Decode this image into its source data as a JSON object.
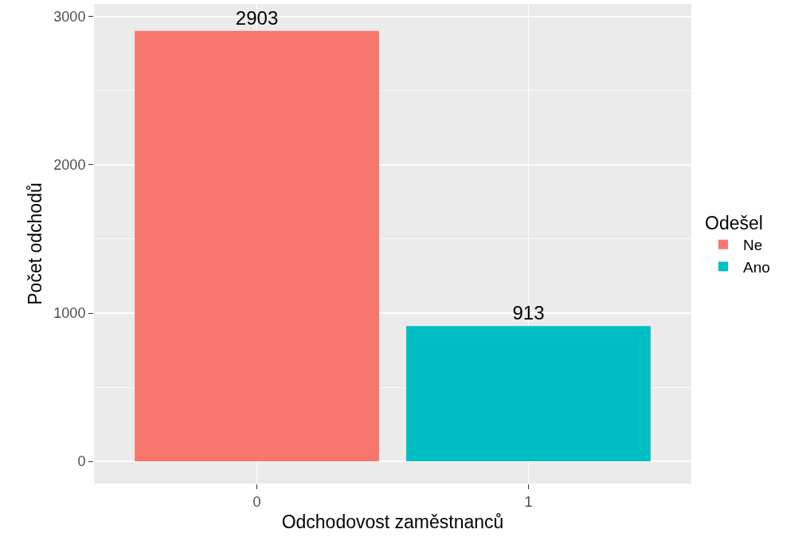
{
  "chart_data": {
    "type": "bar",
    "xlabel": "Odchodovost zaměstnanců",
    "ylabel": "Počet odchodů",
    "legend_title": "Odešel",
    "categories": [
      "0",
      "1"
    ],
    "series": [
      {
        "name": "Ne",
        "color": "#f8766d",
        "values": [
          2903,
          null
        ]
      },
      {
        "name": "Ano",
        "color": "#00bfc4",
        "values": [
          null,
          913
        ]
      }
    ],
    "ylim": [
      -150,
      3085
    ],
    "yticks": [
      0,
      {
        "value": 500,
        "label": null
      },
      1000,
      {
        "value": 1500,
        "label": null
      },
      2000,
      {
        "value": 2500,
        "label": null
      },
      3000
    ],
    "grid": true,
    "legend": "right",
    "data_labels": true
  }
}
